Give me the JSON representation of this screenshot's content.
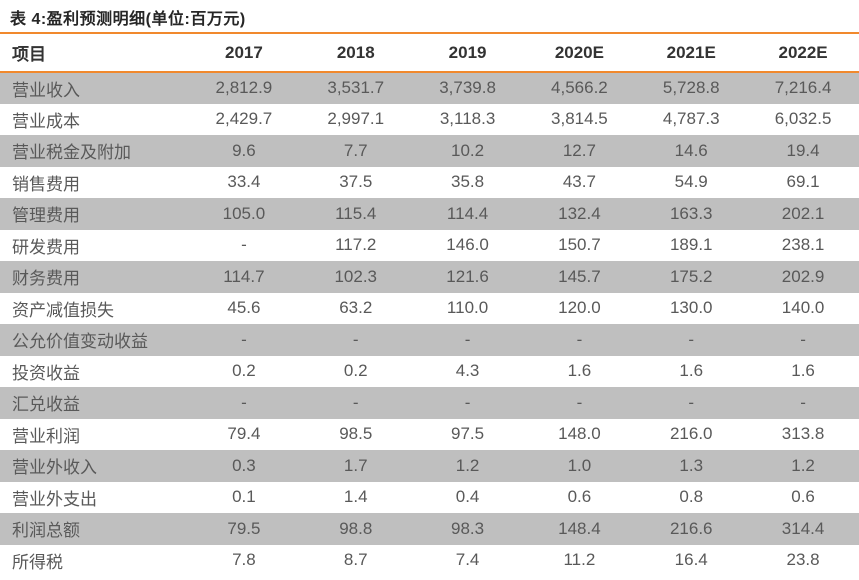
{
  "page": {
    "caption": "表 4:盈利预测明细(单位:百万元)"
  },
  "colors": {
    "accent_orange": "#F1892D",
    "row_stripe_gray": "#BFBFBF",
    "data_text": "#595959",
    "header_text": "#333333",
    "title_text": "#262626"
  },
  "chart_data": {
    "type": "table",
    "title": "表 4:盈利预测明细(单位:百万元)",
    "columns": [
      "项目",
      "2017",
      "2018",
      "2019",
      "2020E",
      "2021E",
      "2022E"
    ],
    "rows": [
      {
        "label": "营业收入",
        "values": [
          "2,812.9",
          "3,531.7",
          "3,739.8",
          "4,566.2",
          "5,728.8",
          "7,216.4"
        ]
      },
      {
        "label": "营业成本",
        "values": [
          "2,429.7",
          "2,997.1",
          "3,118.3",
          "3,814.5",
          "4,787.3",
          "6,032.5"
        ]
      },
      {
        "label": "营业税金及附加",
        "values": [
          "9.6",
          "7.7",
          "10.2",
          "12.7",
          "14.6",
          "19.4"
        ]
      },
      {
        "label": "销售费用",
        "values": [
          "33.4",
          "37.5",
          "35.8",
          "43.7",
          "54.9",
          "69.1"
        ]
      },
      {
        "label": "管理费用",
        "values": [
          "105.0",
          "115.4",
          "114.4",
          "132.4",
          "163.3",
          "202.1"
        ]
      },
      {
        "label": "研发费用",
        "values": [
          "-",
          "117.2",
          "146.0",
          "150.7",
          "189.1",
          "238.1"
        ]
      },
      {
        "label": "财务费用",
        "values": [
          "114.7",
          "102.3",
          "121.6",
          "145.7",
          "175.2",
          "202.9"
        ]
      },
      {
        "label": "资产减值损失",
        "values": [
          "45.6",
          "63.2",
          "110.0",
          "120.0",
          "130.0",
          "140.0"
        ]
      },
      {
        "label": "公允价值变动收益",
        "values": [
          "-",
          "-",
          "-",
          "-",
          "-",
          "-"
        ]
      },
      {
        "label": "投资收益",
        "values": [
          "0.2",
          "0.2",
          "4.3",
          "1.6",
          "1.6",
          "1.6"
        ]
      },
      {
        "label": "汇兑收益",
        "values": [
          "-",
          "-",
          "-",
          "-",
          "-",
          "-"
        ]
      },
      {
        "label": "营业利润",
        "values": [
          "79.4",
          "98.5",
          "97.5",
          "148.0",
          "216.0",
          "313.8"
        ]
      },
      {
        "label": "营业外收入",
        "values": [
          "0.3",
          "1.7",
          "1.2",
          "1.0",
          "1.3",
          "1.2"
        ]
      },
      {
        "label": "营业外支出",
        "values": [
          "0.1",
          "1.4",
          "0.4",
          "0.6",
          "0.8",
          "0.6"
        ]
      },
      {
        "label": "利润总额",
        "values": [
          "79.5",
          "98.8",
          "98.3",
          "148.4",
          "216.6",
          "314.4"
        ]
      },
      {
        "label": "所得税",
        "values": [
          "7.8",
          "8.7",
          "7.4",
          "11.2",
          "16.4",
          "23.8"
        ]
      }
    ]
  }
}
